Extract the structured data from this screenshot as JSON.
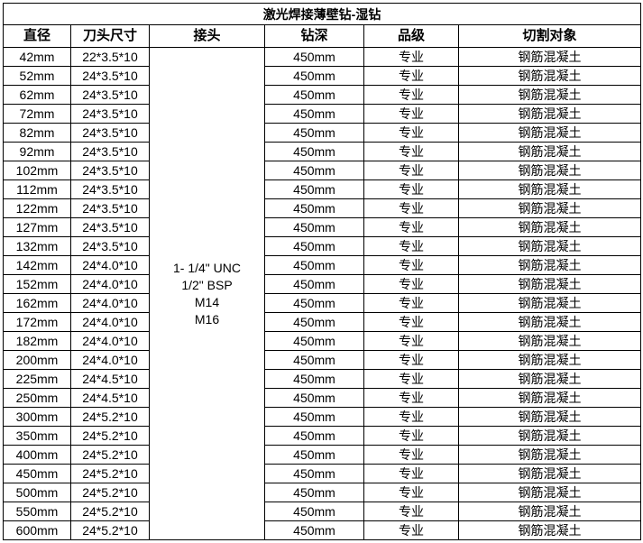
{
  "header": {
    "title": "激光焊接薄壁钻-湿钻"
  },
  "table": {
    "columns": [
      "直径",
      "刀头尺寸",
      "接头",
      "钻深",
      "品级",
      "切割对象"
    ],
    "connector": [
      "1- 1/4\" UNC",
      "1/2\" BSP",
      "M14",
      "M16"
    ],
    "rows": [
      [
        "42mm",
        "22*3.5*10",
        "450mm",
        "专业",
        "钢筋混凝土"
      ],
      [
        "52mm",
        "24*3.5*10",
        "450mm",
        "专业",
        "钢筋混凝土"
      ],
      [
        "62mm",
        "24*3.5*10",
        "450mm",
        "专业",
        "钢筋混凝土"
      ],
      [
        "72mm",
        "24*3.5*10",
        "450mm",
        "专业",
        "钢筋混凝土"
      ],
      [
        "82mm",
        "24*3.5*10",
        "450mm",
        "专业",
        "钢筋混凝土"
      ],
      [
        "92mm",
        "24*3.5*10",
        "450mm",
        "专业",
        "钢筋混凝土"
      ],
      [
        "102mm",
        "24*3.5*10",
        "450mm",
        "专业",
        "钢筋混凝土"
      ],
      [
        "112mm",
        "24*3.5*10",
        "450mm",
        "专业",
        "钢筋混凝土"
      ],
      [
        "122mm",
        "24*3.5*10",
        "450mm",
        "专业",
        "钢筋混凝土"
      ],
      [
        "127mm",
        "24*3.5*10",
        "450mm",
        "专业",
        "钢筋混凝土"
      ],
      [
        "132mm",
        "24*3.5*10",
        "450mm",
        "专业",
        "钢筋混凝土"
      ],
      [
        "142mm",
        "24*4.0*10",
        "450mm",
        "专业",
        "钢筋混凝土"
      ],
      [
        "152mm",
        "24*4.0*10",
        "450mm",
        "专业",
        "钢筋混凝土"
      ],
      [
        "162mm",
        "24*4.0*10",
        "450mm",
        "专业",
        "钢筋混凝土"
      ],
      [
        "172mm",
        "24*4.0*10",
        "450mm",
        "专业",
        "钢筋混凝土"
      ],
      [
        "182mm",
        "24*4.0*10",
        "450mm",
        "专业",
        "钢筋混凝土"
      ],
      [
        "200mm",
        "24*4.0*10",
        "450mm",
        "专业",
        "钢筋混凝土"
      ],
      [
        "225mm",
        "24*4.5*10",
        "450mm",
        "专业",
        "钢筋混凝土"
      ],
      [
        "250mm",
        "24*4.5*10",
        "450mm",
        "专业",
        "钢筋混凝土"
      ],
      [
        "300mm",
        "24*5.2*10",
        "450mm",
        "专业",
        "钢筋混凝土"
      ],
      [
        "350mm",
        "24*5.2*10",
        "450mm",
        "专业",
        "钢筋混凝土"
      ],
      [
        "400mm",
        "24*5.2*10",
        "450mm",
        "专业",
        "钢筋混凝土"
      ],
      [
        "450mm",
        "24*5.2*10",
        "450mm",
        "专业",
        "钢筋混凝土"
      ],
      [
        "500mm",
        "24*5.2*10",
        "450mm",
        "专业",
        "钢筋混凝土"
      ],
      [
        "550mm",
        "24*5.2*10",
        "450mm",
        "专业",
        "钢筋混凝土"
      ],
      [
        "600mm",
        "24*5.2*10",
        "450mm",
        "专业",
        "钢筋混凝土"
      ]
    ]
  }
}
